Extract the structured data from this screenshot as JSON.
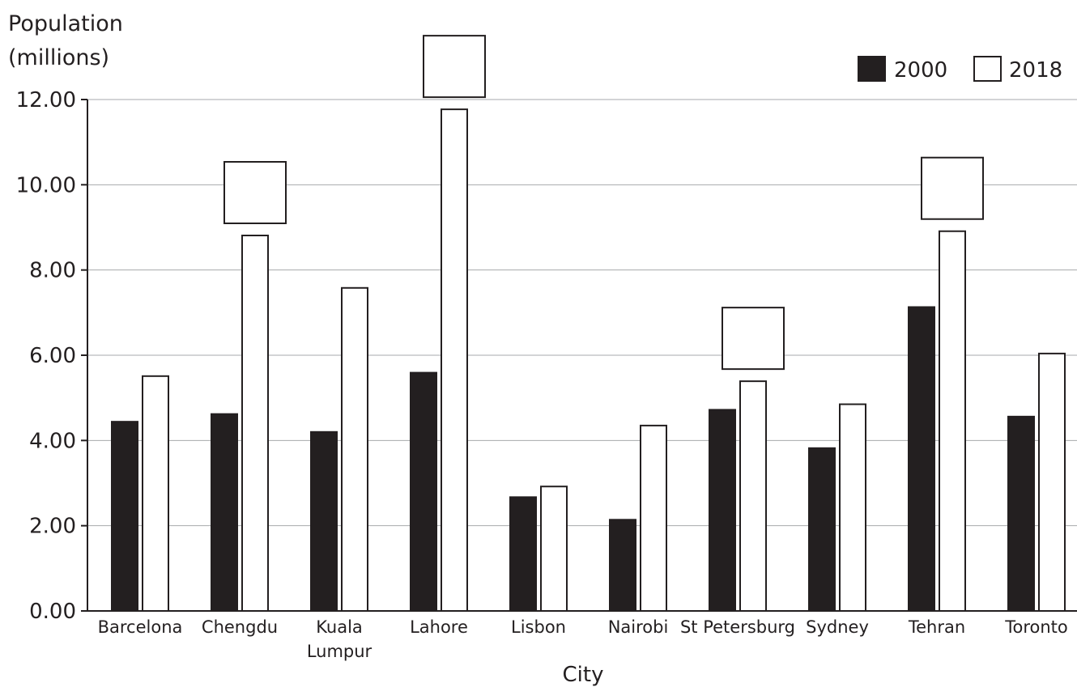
{
  "chart_data": {
    "type": "bar",
    "ylabel_lines": [
      "Population",
      "(millions)"
    ],
    "xlabel": "City",
    "ylim": [
      0,
      12
    ],
    "yticks": [
      "0.00",
      "2.00",
      "4.00",
      "6.00",
      "8.00",
      "10.00",
      "12.00"
    ],
    "grid": true,
    "legend_position": "top-right",
    "categories": [
      [
        "Barcelona"
      ],
      [
        "Chengdu"
      ],
      [
        "Kuala",
        "Lumpur"
      ],
      [
        "Lahore"
      ],
      [
        "Lisbon"
      ],
      [
        "Nairobi"
      ],
      [
        "St Petersburg"
      ],
      [
        "Sydney"
      ],
      [
        "Tehran"
      ],
      [
        "Toronto"
      ]
    ],
    "series": [
      {
        "name": "2000",
        "color": "#231f20",
        "values": [
          4.44,
          4.62,
          4.2,
          5.59,
          2.67,
          2.14,
          4.72,
          3.82,
          7.13,
          4.56
        ]
      },
      {
        "name": "2018",
        "color": "#ffffff",
        "values": [
          5.51,
          8.81,
          7.58,
          11.77,
          2.92,
          4.35,
          5.39,
          4.85,
          8.91,
          6.04
        ]
      }
    ],
    "blank_answer_boxes_above": [
      "Chengdu",
      "Lahore",
      "St Petersburg",
      "Tehran"
    ]
  }
}
